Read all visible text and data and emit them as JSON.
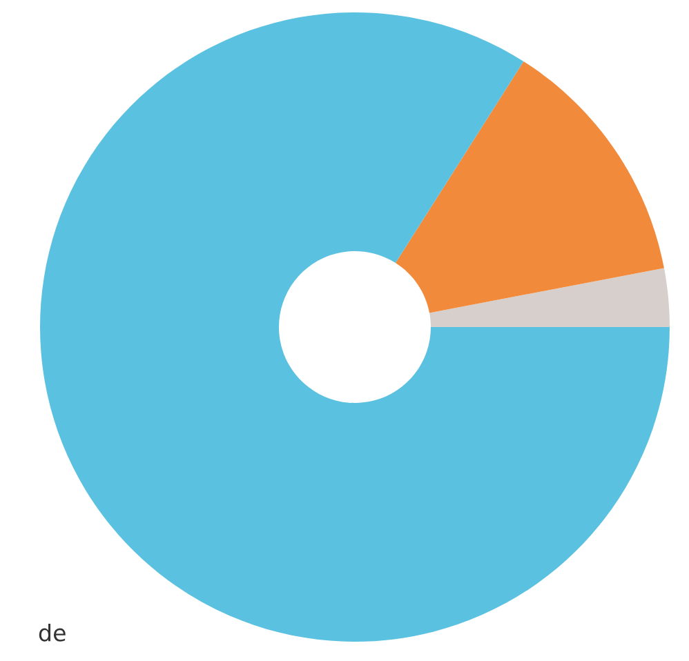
{
  "chart_data": {
    "type": "donut",
    "categories": [
      null,
      null,
      null
    ],
    "values": [
      3,
      13,
      84
    ],
    "colors": [
      "#d7cfcc",
      "#f28a3c",
      "#5bc1e1"
    ],
    "annotations": [
      "de"
    ]
  }
}
